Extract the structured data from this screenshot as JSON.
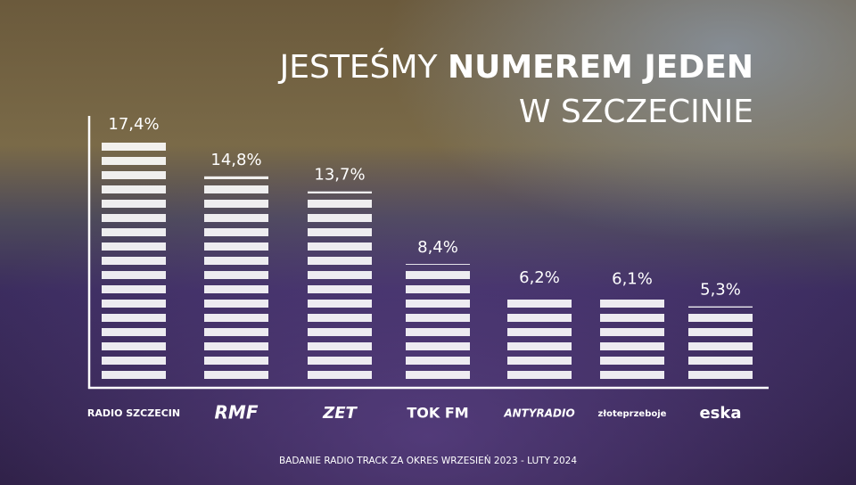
{
  "chart_data": {
    "type": "bar",
    "title": [
      "JESTEŚMY",
      "NUMEREM JEDEN",
      "W SZCZECINIE"
    ],
    "categories": [
      "RADIO SZCZECIN",
      "RMF",
      "ZET",
      "TOK FM",
      "ANTYRADIO",
      "złoteprzeboje",
      "eska"
    ],
    "values": [
      17.4,
      14.8,
      13.7,
      8.4,
      6.2,
      6.1,
      5.3
    ],
    "value_labels": [
      "17,4%",
      "14,8%",
      "13,7%",
      "8,4%",
      "6,2%",
      "6,1%",
      "5,3%"
    ],
    "color": "#ffffff",
    "footnote": "BADANIE RADIO TRACK ZA OKRES WRZESIEŃ 2023 - LUTY 2024"
  }
}
